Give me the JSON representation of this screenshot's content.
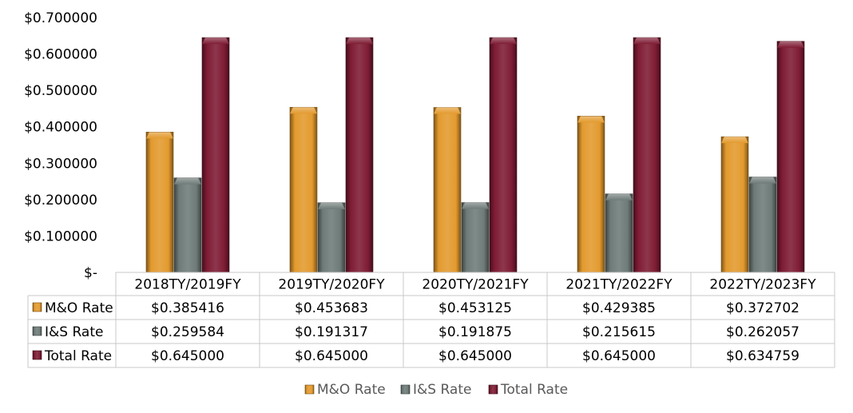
{
  "chart_data": {
    "type": "bar",
    "title": "",
    "xlabel": "",
    "ylabel": "",
    "ylim": [
      0,
      0.7
    ],
    "y_ticks": [
      {
        "value": 0.0,
        "label": "$-"
      },
      {
        "value": 0.1,
        "label": "$0.100000"
      },
      {
        "value": 0.2,
        "label": "$0.200000"
      },
      {
        "value": 0.3,
        "label": "$0.300000"
      },
      {
        "value": 0.4,
        "label": "$0.400000"
      },
      {
        "value": 0.5,
        "label": "$0.500000"
      },
      {
        "value": 0.6,
        "label": "$0.600000"
      },
      {
        "value": 0.7,
        "label": "$0.700000"
      }
    ],
    "categories": [
      "2018TY/2019FY",
      "2019TY/2020FY",
      "2020TY/2021FY",
      "2021TY/2022FY",
      "2022TY/2023FY"
    ],
    "series": [
      {
        "name": "M&O Rate",
        "color": "#E39A2E",
        "values": [
          0.385416,
          0.453683,
          0.453125,
          0.429385,
          0.372702
        ],
        "labels": [
          "$0.385416",
          "$0.453683",
          "$0.453125",
          "$0.429385",
          "$0.372702"
        ]
      },
      {
        "name": "I&S Rate",
        "color": "#6E7B78",
        "values": [
          0.259584,
          0.191317,
          0.191875,
          0.215615,
          0.262057
        ],
        "labels": [
          "$0.259584",
          "$0.191317",
          "$0.191875",
          "$0.215615",
          "$0.262057"
        ]
      },
      {
        "name": "Total Rate",
        "color": "#7E1C34",
        "values": [
          0.645,
          0.645,
          0.645,
          0.645,
          0.634759
        ],
        "labels": [
          "$0.645000",
          "$0.645000",
          "$0.645000",
          "$0.645000",
          "$0.634759"
        ]
      }
    ],
    "data_table": true,
    "legend_position": "bottom"
  }
}
